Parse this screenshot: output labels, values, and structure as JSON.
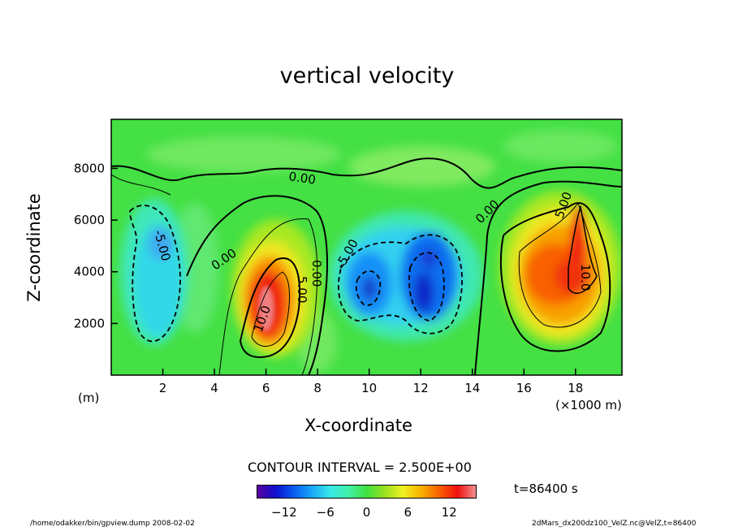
{
  "chart_data": {
    "type": "heatmap",
    "title": "vertical velocity",
    "xlabel": "X-coordinate",
    "ylabel": "Z-coordinate",
    "x_unit_left": "(m)",
    "x_unit_right": "(×1000 m)",
    "xlim": [
      0,
      19.8
    ],
    "ylim": [
      0,
      9900
    ],
    "x_ticks": [
      2,
      4,
      6,
      8,
      10,
      12,
      14,
      16,
      18
    ],
    "y_ticks": [
      2000,
      4000,
      6000,
      8000
    ],
    "contour_interval_text": "CONTOUR INTERVAL = 2.500E+00",
    "contour_labels": [
      "0.00",
      "0.00",
      "0.00",
      "0.00",
      "-5.00",
      "-5.00",
      "5.00",
      "5.00",
      "10.0",
      "10.0"
    ],
    "colorbar": {
      "range": [
        -16,
        16
      ],
      "ticks": [
        -12,
        -6,
        0,
        6,
        12
      ],
      "colors": [
        "#5a00a0",
        "#1010d0",
        "#0a5cf0",
        "#18a8f8",
        "#38e8e8",
        "#40f0a8",
        "#40e040",
        "#9ae020",
        "#f0f020",
        "#f8b000",
        "#f86000",
        "#f01010",
        "#f09090"
      ]
    },
    "time_label": "t=86400 s",
    "background_color": "#40e040",
    "features": [
      {
        "x": 2.2,
        "z": 3800,
        "value": -7
      },
      {
        "x": 6.5,
        "z": 2800,
        "value": 14
      },
      {
        "x": 10.0,
        "z": 3300,
        "value": -10
      },
      {
        "x": 12.0,
        "z": 3200,
        "value": -12
      },
      {
        "x": 17.9,
        "z": 3900,
        "value": 12
      }
    ]
  },
  "footer": {
    "left": "/home/odakker/bin/gpview.dump  2008-02-02",
    "right": "2dMars_dx200dz100_VelZ.nc@VelZ,t=86400"
  }
}
